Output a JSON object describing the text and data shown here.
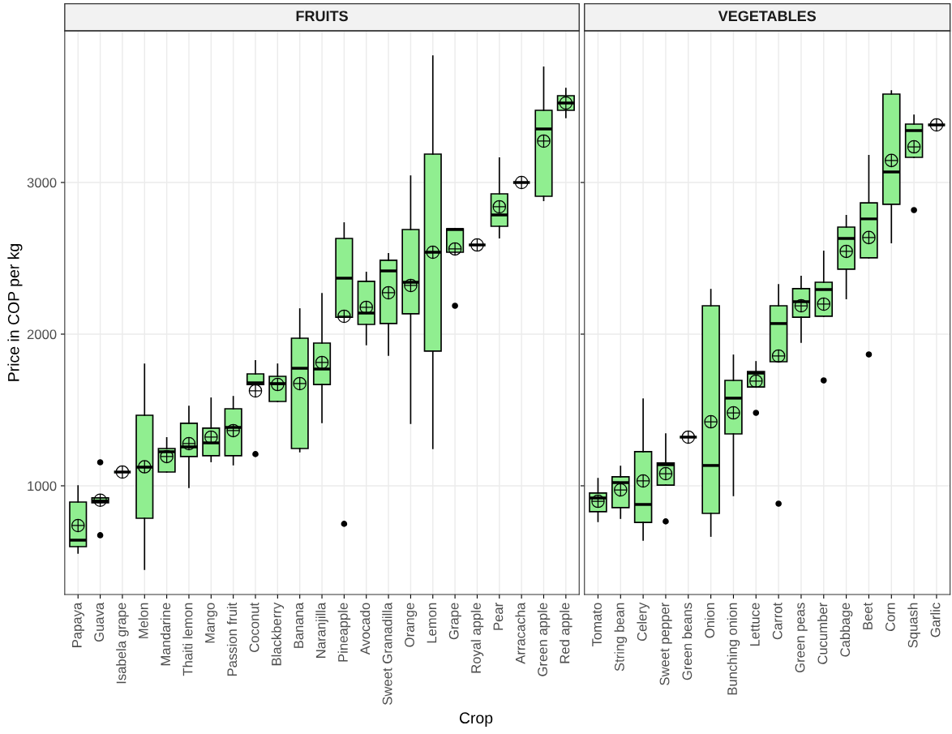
{
  "chart_data": [
    {
      "type": "box",
      "title": "FRUITS",
      "xlabel": "Crop",
      "ylabel": "Price in COP per kg",
      "color": "#90ee90",
      "grid": true,
      "ylim": [
        283,
        4000
      ],
      "yticks": [
        1000,
        2000,
        3000
      ],
      "categories": [
        "Papaya",
        "Guava",
        "Isabela grape",
        "Melon",
        "Mandarine",
        "Thaiti lemon",
        "Mango",
        "Passion fruit",
        "Coconut",
        "Blackberry",
        "Banana",
        "Naranjilla",
        "Pineapple",
        "Avocado",
        "Sweet Granadilla",
        "Orange",
        "Lemon",
        "Grape",
        "Royal apple",
        "Pear",
        "Arracacha",
        "Green apple",
        "Red apple"
      ],
      "boxes": [
        {
          "low": 556,
          "q1": 599,
          "median": 642,
          "q3": 893,
          "high": 1000,
          "mean": 738
        },
        {
          "low": 888,
          "q1": 888,
          "median": 900,
          "q3": 920,
          "high": 920,
          "mean": 905,
          "outliers": [
            1155,
            674
          ]
        },
        {
          "low": 1091,
          "q1": 1091,
          "median": 1091,
          "q3": 1091,
          "high": 1091,
          "mean": 1091
        },
        {
          "low": 449,
          "q1": 786,
          "median": 1123,
          "q3": 1465,
          "high": 1802,
          "mean": 1125
        },
        {
          "low": 1091,
          "q1": 1091,
          "median": 1225,
          "q3": 1246,
          "high": 1316,
          "mean": 1193
        },
        {
          "low": 989,
          "q1": 1193,
          "median": 1257,
          "q3": 1412,
          "high": 1524,
          "mean": 1278
        },
        {
          "low": 1160,
          "q1": 1198,
          "median": 1283,
          "q3": 1380,
          "high": 1578,
          "mean": 1321
        },
        {
          "low": 1139,
          "q1": 1198,
          "median": 1385,
          "q3": 1508,
          "high": 1588,
          "mean": 1364
        },
        {
          "low": 1668,
          "q1": 1668,
          "median": 1679,
          "q3": 1738,
          "high": 1824,
          "mean": 1626,
          "outliers": [
            1209
          ]
        },
        {
          "low": 1556,
          "q1": 1556,
          "median": 1674,
          "q3": 1722,
          "high": 1802,
          "mean": 1668
        },
        {
          "low": 1225,
          "q1": 1246,
          "median": 1775,
          "q3": 1973,
          "high": 2166,
          "mean": 1674
        },
        {
          "low": 1417,
          "q1": 1668,
          "median": 1770,
          "q3": 1941,
          "high": 2267,
          "mean": 1813
        },
        {
          "low": 2112,
          "q1": 2112,
          "median": 2369,
          "q3": 2631,
          "high": 2733,
          "mean": 2118,
          "outliers": [
            749
          ]
        },
        {
          "low": 1931,
          "q1": 2064,
          "median": 2139,
          "q3": 2348,
          "high": 2407,
          "mean": 2177
        },
        {
          "low": 1861,
          "q1": 2070,
          "median": 2417,
          "q3": 2487,
          "high": 2530,
          "mean": 2273
        },
        {
          "low": 1412,
          "q1": 2134,
          "median": 2342,
          "q3": 2690,
          "high": 3043,
          "mean": 2321
        },
        {
          "low": 1246,
          "q1": 1888,
          "median": 2540,
          "q3": 3187,
          "high": 3834,
          "mean": 2540
        },
        {
          "low": 2540,
          "q1": 2540,
          "median": 2690,
          "q3": 2695,
          "high": 2695,
          "mean": 2562,
          "outliers": [
            2187
          ]
        },
        {
          "low": 2588,
          "q1": 2588,
          "median": 2588,
          "q3": 2588,
          "high": 2588,
          "mean": 2588
        },
        {
          "low": 2636,
          "q1": 2711,
          "median": 2786,
          "q3": 2925,
          "high": 3161,
          "mean": 2840
        },
        {
          "low": 3000,
          "q1": 3000,
          "median": 3000,
          "q3": 3000,
          "high": 3000,
          "mean": 3000
        },
        {
          "low": 2882,
          "q1": 2909,
          "median": 3353,
          "q3": 3476,
          "high": 3760,
          "mean": 3273
        },
        {
          "low": 3428,
          "q1": 3476,
          "median": 3524,
          "q3": 3572,
          "high": 3620,
          "mean": 3524
        }
      ]
    },
    {
      "type": "box",
      "title": "VEGETABLES",
      "color": "#90ee90",
      "grid": true,
      "tick_labels": "x",
      "ylim": [
        283,
        4000
      ],
      "yticks": [
        1000,
        2000,
        3000
      ],
      "categories": [
        "Tomato",
        "String bean",
        "Celery",
        "Sweet pepper",
        "Green beans",
        "Onion",
        "Bunching onion",
        "Lettuce",
        "Carrot",
        "Green peas",
        "Cucumber",
        "Cabbage",
        "Beet",
        "Corn",
        "Squash",
        "Garlic"
      ],
      "boxes": [
        {
          "low": 765,
          "q1": 829,
          "median": 920,
          "q3": 952,
          "high": 1048,
          "mean": 898
        },
        {
          "low": 786,
          "q1": 856,
          "median": 1021,
          "q3": 1059,
          "high": 1128,
          "mean": 973
        },
        {
          "low": 642,
          "q1": 759,
          "median": 877,
          "q3": 1225,
          "high": 1572,
          "mean": 1032
        },
        {
          "low": 1005,
          "q1": 1005,
          "median": 1139,
          "q3": 1150,
          "high": 1342,
          "mean": 1080,
          "outliers": [
            765
          ]
        },
        {
          "low": 1321,
          "q1": 1321,
          "median": 1321,
          "q3": 1321,
          "high": 1321,
          "mean": 1321
        },
        {
          "low": 668,
          "q1": 818,
          "median": 1134,
          "q3": 2187,
          "high": 2294,
          "mean": 1422
        },
        {
          "low": 936,
          "q1": 1342,
          "median": 1578,
          "q3": 1695,
          "high": 1861,
          "mean": 1481
        },
        {
          "low": 1652,
          "q1": 1652,
          "median": 1743,
          "q3": 1754,
          "high": 1818,
          "mean": 1690,
          "outliers": [
            1481
          ]
        },
        {
          "low": 1818,
          "q1": 1818,
          "median": 2070,
          "q3": 2187,
          "high": 2326,
          "mean": 1856,
          "outliers": [
            882
          ]
        },
        {
          "low": 1947,
          "q1": 2112,
          "median": 2214,
          "q3": 2300,
          "high": 2380,
          "mean": 2187
        },
        {
          "low": 2118,
          "q1": 2118,
          "median": 2294,
          "q3": 2342,
          "high": 2546,
          "mean": 2198,
          "outliers": [
            1695
          ]
        },
        {
          "low": 2235,
          "q1": 2428,
          "median": 2631,
          "q3": 2706,
          "high": 2781,
          "mean": 2546
        },
        {
          "low": 2503,
          "q1": 2503,
          "median": 2760,
          "q3": 2866,
          "high": 3177,
          "mean": 2637,
          "outliers": [
            1866
          ]
        },
        {
          "low": 2604,
          "q1": 2856,
          "median": 3070,
          "q3": 3583,
          "high": 3604,
          "mean": 3145
        },
        {
          "low": 3166,
          "q1": 3166,
          "median": 3342,
          "q3": 3385,
          "high": 3444,
          "mean": 3235,
          "outliers": [
            2818
          ]
        },
        {
          "low": 3380,
          "q1": 3380,
          "median": 3380,
          "q3": 3380,
          "high": 3380,
          "mean": 3380
        }
      ]
    }
  ]
}
